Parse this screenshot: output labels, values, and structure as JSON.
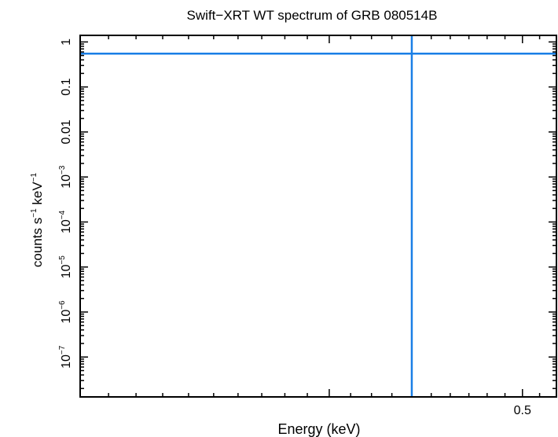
{
  "chart_data": {
    "type": "line",
    "title": "Swift−XRT WT spectrum of GRB 080514B",
    "xlabel": "Energy (keV)",
    "ylabel_base": "counts s",
    "ylabel_mid": " keV",
    "ylabel_sup": "−1",
    "x_scale": "log",
    "y_scale": "log",
    "xlim": [
      0.3,
      0.52
    ],
    "ylim": [
      1.3e-08,
      1.4
    ],
    "x_ticks": [
      {
        "value": 0.4,
        "label": ""
      },
      {
        "value": 0.5,
        "label": "0.5"
      }
    ],
    "y_ticks": [
      {
        "value": 1,
        "base": "1",
        "exp": ""
      },
      {
        "value": 0.1,
        "base": "0.1",
        "exp": ""
      },
      {
        "value": 0.01,
        "base": "0.01",
        "exp": ""
      },
      {
        "value": 0.001,
        "base": "10",
        "exp": "−3"
      },
      {
        "value": 0.0001,
        "base": "10",
        "exp": "−4"
      },
      {
        "value": 1e-05,
        "base": "10",
        "exp": "−5"
      },
      {
        "value": 1e-06,
        "base": "10",
        "exp": "−6"
      },
      {
        "value": 1e-07,
        "base": "10",
        "exp": "−7"
      }
    ],
    "series": [
      {
        "color": "#1a7fe6",
        "points": [
          {
            "x": 0.44,
            "y": 0.55
          }
        ]
      }
    ],
    "grid": false,
    "legend": "none"
  }
}
